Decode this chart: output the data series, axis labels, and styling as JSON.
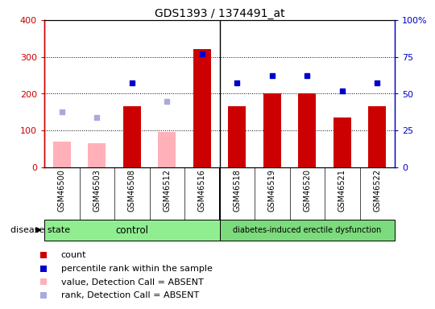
{
  "title": "GDS1393 / 1374491_at",
  "samples": [
    "GSM46500",
    "GSM46503",
    "GSM46508",
    "GSM46512",
    "GSM46516",
    "GSM46518",
    "GSM46519",
    "GSM46520",
    "GSM46521",
    "GSM46522"
  ],
  "count_values": [
    null,
    null,
    165,
    null,
    320,
    165,
    200,
    200,
    135,
    165
  ],
  "count_absent": [
    70,
    65,
    null,
    95,
    null,
    null,
    null,
    null,
    null,
    null
  ],
  "rank_values": [
    null,
    null,
    228,
    null,
    308,
    228,
    248,
    248,
    208,
    228
  ],
  "rank_absent": [
    150,
    135,
    null,
    178,
    null,
    null,
    null,
    null,
    null,
    null
  ],
  "n_control": 5,
  "n_disease": 5,
  "group_labels": [
    "control",
    "diabetes-induced erectile dysfunction"
  ],
  "ylim_left": [
    0,
    400
  ],
  "ylim_right": [
    0,
    100
  ],
  "yticks_left": [
    0,
    100,
    200,
    300,
    400
  ],
  "ytick_labels_left": [
    "0",
    "100",
    "200",
    "300",
    "400"
  ],
  "yticks_right": [
    0,
    25,
    50,
    75,
    100
  ],
  "ytick_labels_right": [
    "0",
    "25",
    "50",
    "75",
    "100%"
  ],
  "bar_color_red": "#CC0000",
  "bar_color_pink": "#FFB0B8",
  "dot_color_blue": "#0000CC",
  "dot_color_lightblue": "#AAAADD",
  "bg_label": "#C8C8C8",
  "bg_control": "#90EE90",
  "bg_disease": "#7CDB7C",
  "legend_items": [
    {
      "label": "count",
      "color": "#CC0000"
    },
    {
      "label": "percentile rank within the sample",
      "color": "#0000CC"
    },
    {
      "label": "value, Detection Call = ABSENT",
      "color": "#FFB0B8"
    },
    {
      "label": "rank, Detection Call = ABSENT",
      "color": "#AAAADD"
    }
  ],
  "disease_state_label": "disease state"
}
